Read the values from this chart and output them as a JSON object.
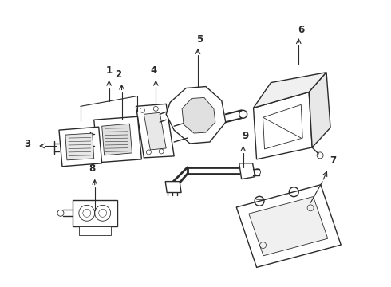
{
  "background_color": "#ffffff",
  "line_color": "#2a2a2a",
  "fig_width": 4.9,
  "fig_height": 3.6,
  "dpi": 100,
  "label_fontsize": 8.5,
  "lw_main": 1.0,
  "lw_thin": 0.6
}
